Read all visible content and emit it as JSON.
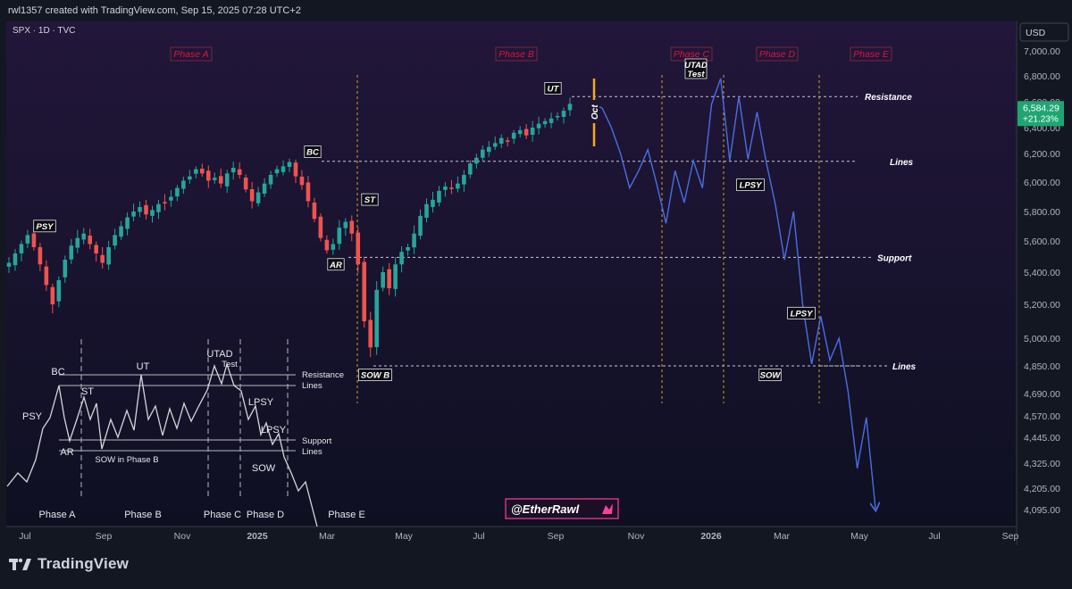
{
  "header": {
    "created_line": "rwl1357 created with TradingView.com, Sep 15, 2025 07:28 UTC+2",
    "symbol_line": "SPX · 1D · TVC"
  },
  "branding": {
    "logo_text": "TradingView",
    "watermark": "@EtherRawl"
  },
  "colors": {
    "background_top": "#1e1530",
    "background_bottom": "#0f1024",
    "up_candle": "#26a69a",
    "down_candle": "#ef5350",
    "projection": "#4a6ee0",
    "phase_label": "#e0143c",
    "last_price_badge": "#1ea672"
  },
  "chart_data": {
    "type": "candlestick",
    "currency": "USD",
    "price_axis": [
      {
        "value": 7000,
        "label": "7,000.00"
      },
      {
        "value": 6800,
        "label": "6,800.00"
      },
      {
        "value": 6600,
        "label": "6,600.00"
      },
      {
        "value": 6400,
        "label": "6,400.00"
      },
      {
        "value": 6200,
        "label": "6,200.00"
      },
      {
        "value": 6000,
        "label": "6,000.00"
      },
      {
        "value": 5800,
        "label": "5,800.00"
      },
      {
        "value": 5600,
        "label": "5,600.00"
      },
      {
        "value": 5400,
        "label": "5,400.00"
      },
      {
        "value": 5200,
        "label": "5,200.00"
      },
      {
        "value": 5000,
        "label": "5,000.00"
      },
      {
        "value": 4850,
        "label": "4,850.00"
      },
      {
        "value": 4690,
        "label": "4,690.00"
      },
      {
        "value": 4570,
        "label": "4,570.00"
      },
      {
        "value": 4445,
        "label": "4,445.00"
      },
      {
        "value": 4325,
        "label": "4,325.00"
      },
      {
        "value": 4205,
        "label": "4,205.00"
      },
      {
        "value": 4095,
        "label": "4,095.00"
      }
    ],
    "last_price": {
      "value": 6584.29,
      "label": "6,584.29",
      "change": "+21.23%"
    },
    "time_axis": [
      "Jul",
      "Sep",
      "Nov",
      "2025",
      "Mar",
      "May",
      "Jul",
      "Sep",
      "Nov",
      "2026",
      "Mar",
      "May",
      "Jul",
      "Sep"
    ],
    "closes": [
      5460,
      5520,
      5580,
      5640,
      5560,
      5450,
      5320,
      5200,
      5350,
      5480,
      5570,
      5620,
      5650,
      5580,
      5520,
      5460,
      5560,
      5640,
      5700,
      5760,
      5800,
      5830,
      5780,
      5810,
      5850,
      5860,
      5900,
      5960,
      6010,
      6040,
      6090,
      6060,
      6010,
      6030,
      5990,
      6060,
      6100,
      6050,
      5950,
      5870,
      5930,
      5990,
      6050,
      6090,
      6110,
      6140,
      6040,
      5980,
      5870,
      5750,
      5620,
      5540,
      5580,
      5690,
      5730,
      5650,
      5450,
      5100,
      4950,
      5290,
      5400,
      5300,
      5450,
      5530,
      5560,
      5650,
      5770,
      5850,
      5880,
      5940,
      5970,
      5960,
      5990,
      6050,
      6130,
      6170,
      6230,
      6250,
      6280,
      6320,
      6300,
      6360,
      6380,
      6340,
      6400,
      6430,
      6450,
      6470,
      6490,
      6530,
      6584
    ],
    "projection": [
      6584,
      6550,
      6400,
      6200,
      5960,
      6080,
      6230,
      5980,
      5720,
      6080,
      5860,
      6150,
      5960,
      6580,
      6780,
      6150,
      6640,
      6160,
      6520,
      6140,
      5850,
      5480,
      5800,
      5200,
      4860,
      5130,
      4880,
      5000,
      4700,
      4300,
      4560,
      4100
    ],
    "levels": [
      {
        "label": "Resistance",
        "value": 6640
      },
      {
        "label": "Lines",
        "value": 6145
      },
      {
        "label": "Support",
        "value": 5495
      },
      {
        "label": "Lines",
        "value": 4850
      }
    ],
    "phases": [
      "Phase A",
      "Phase B",
      "Phase C",
      "Phase D",
      "Phase E"
    ],
    "event_labels": [
      {
        "label": "PSY",
        "value": 5680
      },
      {
        "label": "BC",
        "value": 6190
      },
      {
        "label": "AR",
        "value": 5430
      },
      {
        "label": "ST",
        "value": 5860
      },
      {
        "label": "SOW B",
        "value": 4780
      },
      {
        "label": "UT",
        "value": 6680
      },
      {
        "label": "UTAD Test",
        "value": 6800
      },
      {
        "label": "LPSY",
        "value": 5960
      },
      {
        "label": "SOW",
        "value": 4780
      },
      {
        "label": "LPSY",
        "value": 5130
      }
    ],
    "marker": {
      "label": "Oct"
    }
  },
  "schematic": {
    "events": [
      "PSY",
      "BC",
      "ST",
      "AR",
      "UT",
      "UTAD",
      "Test",
      "SOW in Phase B",
      "LPSY",
      "LPSY",
      "SOW"
    ],
    "lines": [
      "Resistance",
      "Lines",
      "Support",
      "Lines"
    ],
    "phases": [
      "Phase A",
      "Phase B",
      "Phase C",
      "Phase D",
      "Phase E"
    ]
  }
}
